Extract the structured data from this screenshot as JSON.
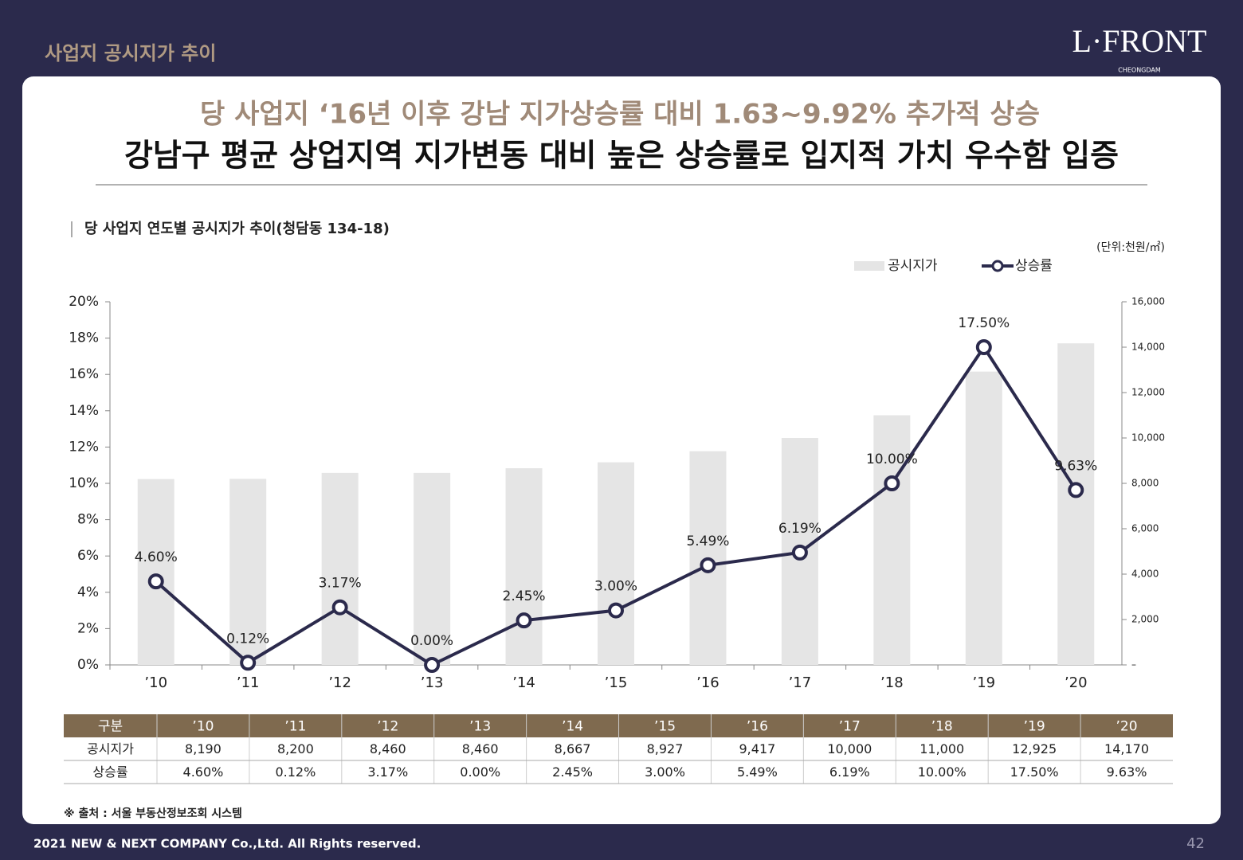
{
  "header": {
    "title": "사업지 공시지가 추이",
    "logo": "L·FRONT",
    "logo_sub": "CHEONGDAM"
  },
  "headline": {
    "line1": "당 사업지 ‘16년 이후 강남 지가상승률 대비 1.63~9.92% 추가적 상승",
    "line2": "강남구 평균 상업지역 지가변동 대비 높은 상승률로 입지적 가치 우수함 입증"
  },
  "chart_data": {
    "type": "combo",
    "title": "당 사업지 연도별 공시지가 추이(청담동 134-18)",
    "unit": "(단위:천원/㎡)",
    "categories": [
      "’10",
      "’11",
      "’12",
      "’13",
      "’14",
      "’15",
      "’16",
      "’17",
      "’18",
      "’19",
      "’20"
    ],
    "series": [
      {
        "name": "공시지가",
        "type": "bar",
        "axis": "y2",
        "color": "#e5e5e5",
        "values": [
          8190,
          8200,
          8460,
          8460,
          8667,
          8927,
          9417,
          10000,
          11000,
          12925,
          14170
        ]
      },
      {
        "name": "상승률",
        "type": "line",
        "axis": "y",
        "color": "#2b2a4c",
        "values": [
          4.6,
          0.12,
          3.17,
          0,
          2.45,
          3,
          5.49,
          6.19,
          10,
          17.5,
          9.63
        ],
        "value_labels": [
          "4.60%",
          "0.12%",
          "3.17%",
          "0.00%",
          "2.45%",
          "3.00%",
          "5.49%",
          "6.19%",
          "10.00%",
          "17.50%",
          "9.63%"
        ]
      }
    ],
    "ylim": [
      0,
      20
    ],
    "yticks": [
      {
        "value": 0,
        "label": "0%"
      },
      {
        "value": 2,
        "label": "2%"
      },
      {
        "value": 4,
        "label": "4%"
      },
      {
        "value": 6,
        "label": "6%"
      },
      {
        "value": 8,
        "label": "8%"
      },
      {
        "value": 10,
        "label": "10%"
      },
      {
        "value": 12,
        "label": "12%"
      },
      {
        "value": 14,
        "label": "14%"
      },
      {
        "value": 16,
        "label": "16%"
      },
      {
        "value": 18,
        "label": "18%"
      },
      {
        "value": 20,
        "label": "20%"
      }
    ],
    "y2lim": [
      0,
      16000
    ],
    "y2ticks": [
      {
        "value": 0,
        "label": "–"
      },
      {
        "value": 2000,
        "label": "2,000"
      },
      {
        "value": 4000,
        "label": "4,000"
      },
      {
        "value": 6000,
        "label": "6,000"
      },
      {
        "value": 8000,
        "label": "8,000"
      },
      {
        "value": 10000,
        "label": "10,000"
      },
      {
        "value": 12000,
        "label": "12,000"
      },
      {
        "value": 14000,
        "label": "14,000"
      },
      {
        "value": 16000,
        "label": "16,000"
      }
    ]
  },
  "table": {
    "header": [
      "구분",
      "’10",
      "’11",
      "’12",
      "’13",
      "’14",
      "’15",
      "’16",
      "’17",
      "’18",
      "’19",
      "’20"
    ],
    "rows": [
      [
        "공시지가",
        "8,190",
        "8,200",
        "8,460",
        "8,460",
        "8,667",
        "8,927",
        "9,417",
        "10,000",
        "11,000",
        "12,925",
        "14,170"
      ],
      [
        "상승률",
        "4.60%",
        "0.12%",
        "3.17%",
        "0.00%",
        "2.45%",
        "3.00%",
        "5.49%",
        "6.19%",
        "10.00%",
        "17.50%",
        "9.63%"
      ]
    ]
  },
  "source": "※ 출처 : 서울 부동산정보조회 시스템",
  "footer": {
    "copyright": "2021 NEW & NEXT COMPANY Co.,Ltd. All Rights reserved.",
    "page": "42"
  }
}
